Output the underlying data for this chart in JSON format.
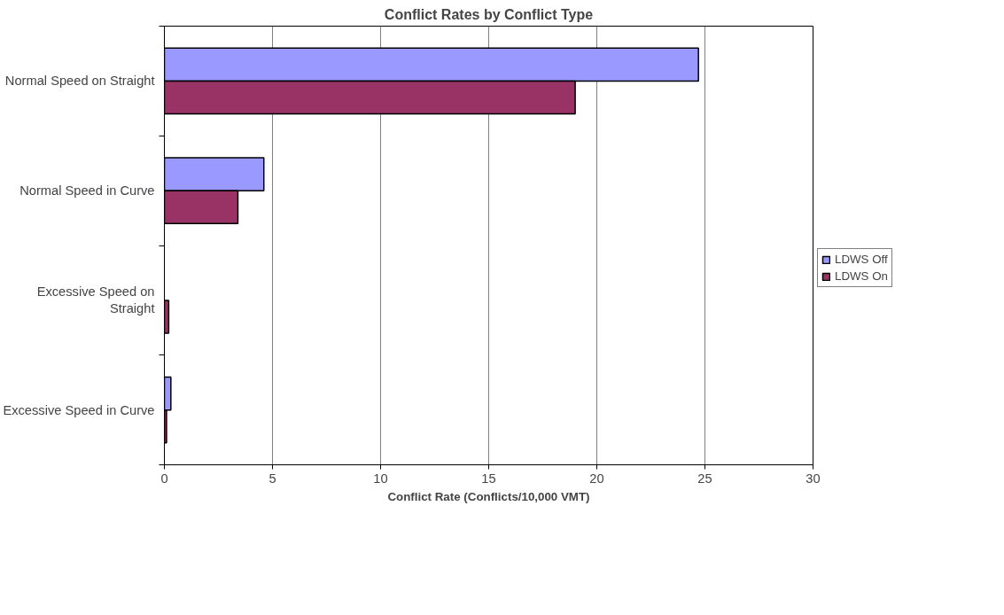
{
  "chart_data": {
    "type": "bar",
    "orientation": "horizontal",
    "title": "Conflict Rates by Conflict Type",
    "xlabel": "Conflict Rate (Conflicts/10,000 VMT)",
    "categories": [
      "Normal Speed on Straight",
      "Normal Speed in Curve",
      "Excessive Speed on Straight",
      "Excessive Speed in Curve"
    ],
    "series": [
      {
        "name": "LDWS Off",
        "color": "#9999ff",
        "values": [
          24.7,
          4.6,
          null,
          0.3
        ]
      },
      {
        "name": "LDWS On",
        "color": "#993366",
        "values": [
          19.0,
          3.4,
          0.2,
          0.1
        ]
      }
    ],
    "xlim": [
      0,
      30
    ],
    "xticks": [
      0,
      5,
      10,
      15,
      20,
      25,
      30
    ],
    "grid": "x",
    "legend": "right"
  }
}
